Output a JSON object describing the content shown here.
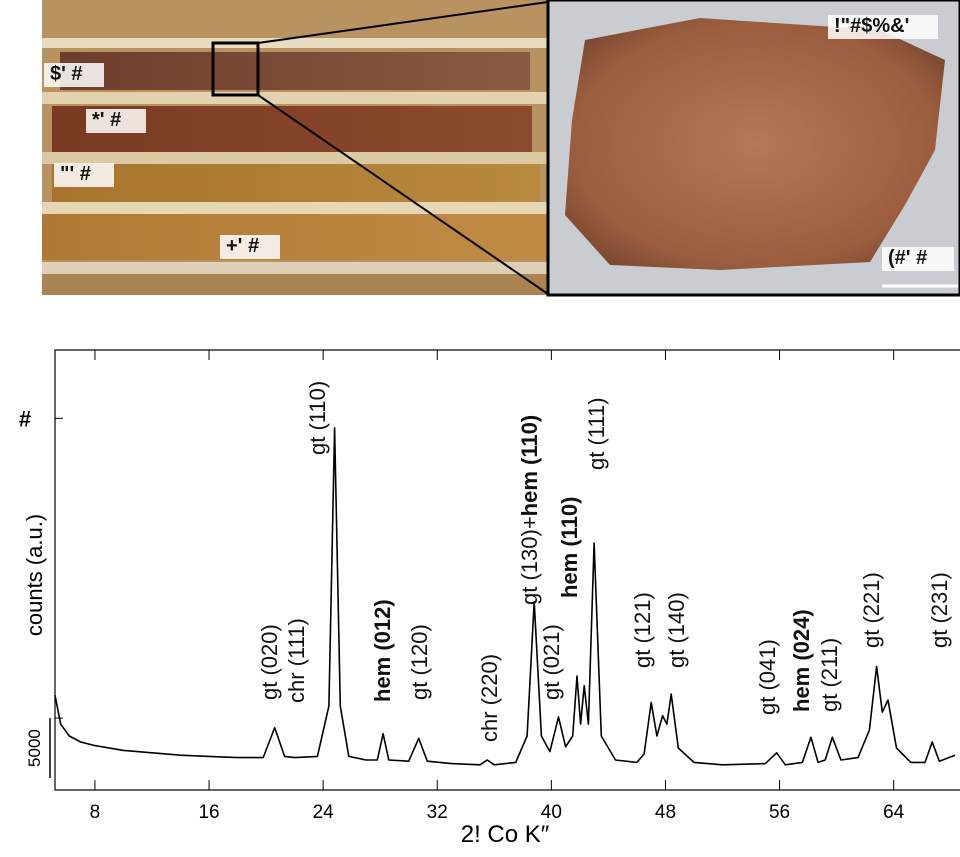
{
  "photos": {
    "core_labels": [
      "$' #",
      "*' #",
      "\"' #",
      "+' #"
    ],
    "sample_labels": [
      "!\"#$%&'",
      "(#' #"
    ]
  },
  "chart_data": {
    "type": "line",
    "xlabel": "2!  Co K″",
    "ylabel": "counts (a.u.)",
    "xlim": [
      5.2,
      68.3
    ],
    "xticks": [
      8,
      16,
      24,
      32,
      40,
      48,
      56,
      64
    ],
    "ylim": [
      -1000,
      35700
    ],
    "yticks": [
      {
        "value": 5000,
        "label": "5000"
      },
      {
        "value": 30000,
        "label": "#"
      }
    ],
    "series": [
      {
        "color": "#000000",
        "x": [
          5.2,
          5.6,
          6.2,
          7,
          8,
          10,
          12,
          14,
          16,
          18,
          19.8,
          20.6,
          21.3,
          22,
          23.6,
          24.4,
          24.8,
          25.2,
          25.8,
          27,
          27.8,
          28.2,
          28.6,
          30,
          30.7,
          31.3,
          33,
          35,
          35.5,
          36,
          37.5,
          38.3,
          38.8,
          39.3,
          39.9,
          40.5,
          41,
          41.5,
          41.8,
          42.05,
          42.3,
          42.6,
          43,
          43.5,
          44.5,
          46,
          46.5,
          47,
          47.4,
          47.8,
          48.1,
          48.4,
          48.9,
          50,
          52,
          55,
          55.8,
          56.4,
          57.6,
          58.2,
          58.7,
          59.2,
          59.7,
          60.3,
          61.5,
          62.3,
          62.8,
          63.2,
          63.6,
          64.2,
          65.2,
          66.2,
          66.7,
          67.2,
          68.3
        ],
        "values": [
          6900,
          4500,
          3500,
          3000,
          2700,
          2300,
          2100,
          1900,
          1800,
          1700,
          1700,
          4200,
          1800,
          1700,
          1800,
          6000,
          29200,
          6000,
          1800,
          1500,
          1500,
          3700,
          1500,
          1400,
          3300,
          1400,
          1200,
          1100,
          1500,
          1100,
          1300,
          3500,
          14700,
          3500,
          2200,
          5100,
          2600,
          3500,
          8500,
          4500,
          7700,
          4500,
          19600,
          3500,
          1500,
          1300,
          2000,
          6300,
          3500,
          5200,
          4500,
          7000,
          2500,
          1300,
          1100,
          1200,
          2100,
          1100,
          1300,
          3400,
          1300,
          1500,
          3400,
          1500,
          1700,
          4000,
          9300,
          5500,
          6500,
          2500,
          1300,
          1300,
          3000,
          1400,
          1900
        ]
      }
    ],
    "annotations": [
      {
        "text": "gt (020)"
      },
      {
        "text": "chr (111)"
      },
      {
        "text": "gt (110)"
      },
      {
        "text": "hem (012)",
        "bold": true
      },
      {
        "text": "gt (120)"
      },
      {
        "text": "chr (220)"
      },
      {
        "text": "gt (130)+"
      },
      {
        "text": "hem (110)",
        "bold": true
      },
      {
        "text": "gt (021)"
      },
      {
        "text": "hem (110)",
        "bold": true
      },
      {
        "text": "gt (111)"
      },
      {
        "text": "gt (121)"
      },
      {
        "text": "gt (140)"
      },
      {
        "text": "gt (041)"
      },
      {
        "text": "hem (024)",
        "bold": true
      },
      {
        "text": "gt (211)"
      },
      {
        "text": "gt (221)"
      },
      {
        "text": "gt (231)"
      }
    ]
  }
}
